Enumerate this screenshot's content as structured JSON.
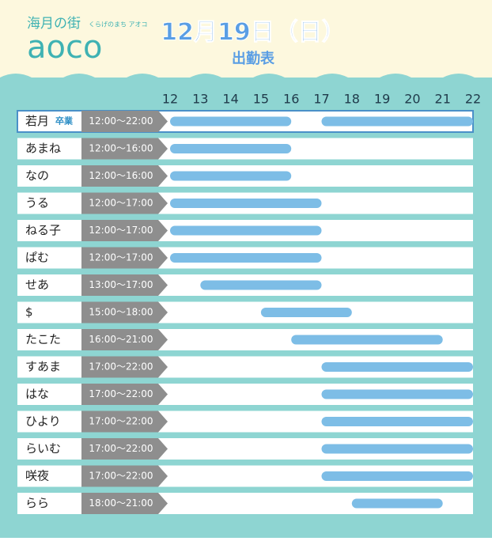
{
  "header": {
    "brand_small": "海月の街",
    "brand_sub": "くらげのまち アオコ",
    "brand": "aoco",
    "date": "12月19日（日）",
    "title": "出勤表"
  },
  "chart_data": {
    "type": "gantt",
    "xlim": [
      12,
      22
    ],
    "xticks": [
      12,
      13,
      14,
      15,
      16,
      17,
      18,
      19,
      20,
      21,
      22
    ],
    "rows": [
      {
        "name": "若月",
        "badge": "卒業",
        "hours": "12:00～22:00",
        "segments": [
          {
            "start": 12,
            "end": 16
          },
          {
            "start": 17,
            "end": 22
          }
        ]
      },
      {
        "name": "あまね",
        "hours": "12:00～16:00",
        "segments": [
          {
            "start": 12,
            "end": 16
          }
        ]
      },
      {
        "name": "なの",
        "hours": "12:00～16:00",
        "segments": [
          {
            "start": 12,
            "end": 16
          }
        ]
      },
      {
        "name": "うる",
        "hours": "12:00～17:00",
        "segments": [
          {
            "start": 12,
            "end": 17
          }
        ]
      },
      {
        "name": "ねる子",
        "hours": "12:00～17:00",
        "segments": [
          {
            "start": 12,
            "end": 17
          }
        ]
      },
      {
        "name": "ぱむ",
        "hours": "12:00～17:00",
        "segments": [
          {
            "start": 12,
            "end": 17
          }
        ]
      },
      {
        "name": "せあ",
        "hours": "13:00～17:00",
        "segments": [
          {
            "start": 13,
            "end": 17
          }
        ]
      },
      {
        "name": "$",
        "hours": "15:00～18:00",
        "segments": [
          {
            "start": 15,
            "end": 18
          }
        ]
      },
      {
        "name": "たこた",
        "hours": "16:00～21:00",
        "segments": [
          {
            "start": 16,
            "end": 21
          }
        ]
      },
      {
        "name": "すあま",
        "hours": "17:00～22:00",
        "segments": [
          {
            "start": 17,
            "end": 22
          }
        ]
      },
      {
        "name": "はな",
        "hours": "17:00～22:00",
        "segments": [
          {
            "start": 17,
            "end": 22
          }
        ]
      },
      {
        "name": "ひより",
        "hours": "17:00～22:00",
        "segments": [
          {
            "start": 17,
            "end": 22
          }
        ]
      },
      {
        "name": "らいむ",
        "hours": "17:00～22:00",
        "segments": [
          {
            "start": 17,
            "end": 22
          }
        ]
      },
      {
        "name": "咲夜",
        "hours": "17:00～22:00",
        "segments": [
          {
            "start": 17,
            "end": 22
          }
        ]
      },
      {
        "name": "らら",
        "hours": "18:00～21:00",
        "segments": [
          {
            "start": 18,
            "end": 21
          }
        ]
      }
    ],
    "bar_color": "#7dbde6"
  }
}
